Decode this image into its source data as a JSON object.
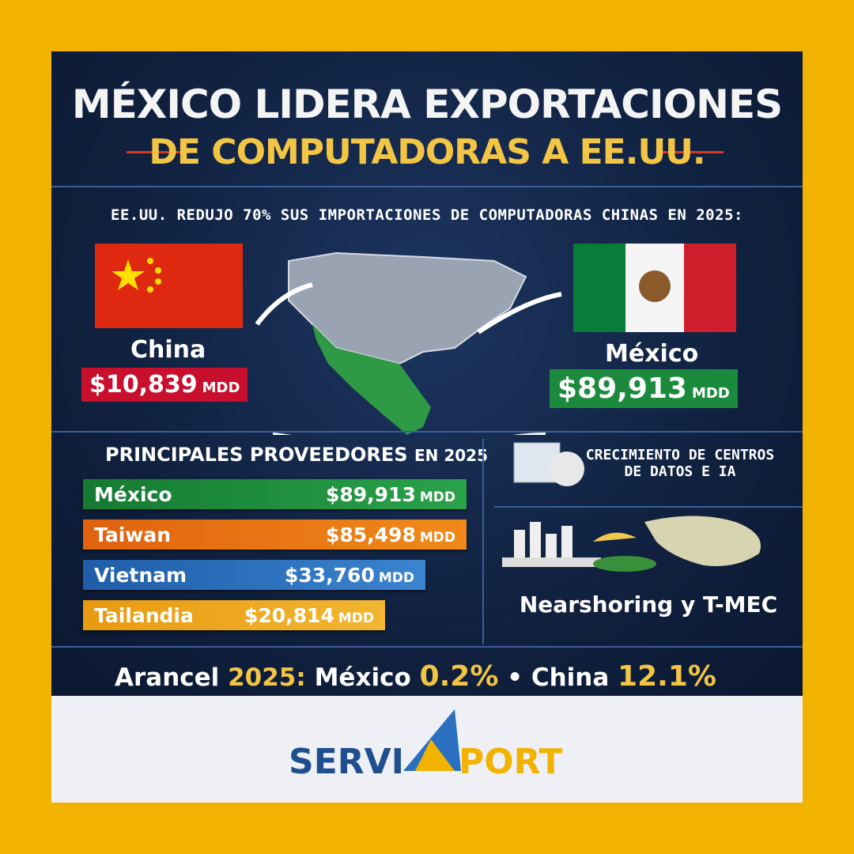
{
  "header": {
    "title_line1": "MÉXICO LIDERA EXPORTACIONES",
    "title_line2": "DE COMPUTADORAS A EE.UU."
  },
  "subtitle": "EE.UU. REDUJO 70% SUS IMPORTACIONES DE COMPUTADORAS CHINAS EN 2025:",
  "china": {
    "name": "China",
    "amount": "$10,839",
    "unit": "MDD"
  },
  "mexico": {
    "name": "México",
    "amount": "$89,913",
    "unit": "MDD"
  },
  "suppliers": {
    "title": "PRINCIPALES PROVEEDORES",
    "year": "EN 2025",
    "rows": [
      {
        "name": "México",
        "amount": "$89,913",
        "unit": "MDD"
      },
      {
        "name": "Taiwan",
        "amount": "$85,498",
        "unit": "MDD"
      },
      {
        "name": "Vietnam",
        "amount": "$33,760",
        "unit": "MDD"
      },
      {
        "name": "Tailandia",
        "amount": "$20,814",
        "unit": "MDD"
      }
    ]
  },
  "drivers": {
    "data_centers": "CRECIMIENTO DE CENTROS DE DATOS E IA",
    "nearshoring": "Nearshoring y T-MEC"
  },
  "tariff": {
    "label": "Arancel",
    "year": "2025:",
    "mexico": "México",
    "mexico_rate": "0.2%",
    "separator": "•",
    "china": "China",
    "china_rate": "12.1%"
  },
  "logo": {
    "part1": "SERVI",
    "part2": "PORT"
  }
}
